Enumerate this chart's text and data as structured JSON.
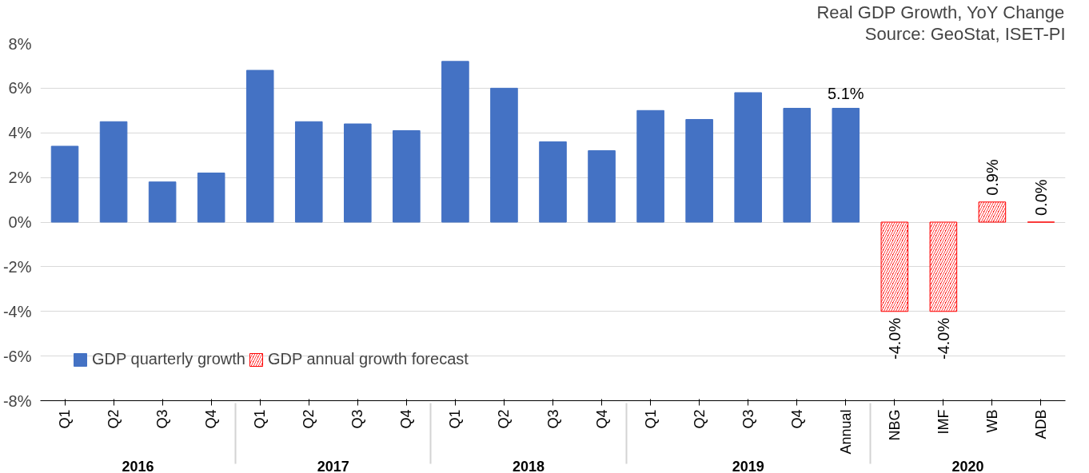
{
  "chart_data": {
    "type": "bar",
    "title": "Real GDP Growth, YoY Change",
    "annotations": [
      "Source: GeoStat, ISET-PI"
    ],
    "categories": [
      [
        "2016",
        "Q1"
      ],
      [
        null,
        "Q2"
      ],
      [
        null,
        "Q3"
      ],
      [
        null,
        "Q4"
      ],
      [
        "2017",
        "Q1"
      ],
      [
        null,
        "Q2"
      ],
      [
        null,
        "Q3"
      ],
      [
        null,
        "Q4"
      ],
      [
        "2018",
        "Q1"
      ],
      [
        null,
        "Q2"
      ],
      [
        null,
        "Q3"
      ],
      [
        null,
        "Q4"
      ],
      [
        "2019",
        "Q1"
      ],
      [
        null,
        "Q2"
      ],
      [
        null,
        "Q3"
      ],
      [
        null,
        "Q4"
      ],
      [
        null,
        "Annual"
      ],
      [
        "2020",
        "NBG"
      ],
      [
        null,
        "IMF"
      ],
      [
        null,
        "WB"
      ],
      [
        null,
        "ADB"
      ]
    ],
    "series": [
      {
        "name": "GDP quarterly growth",
        "color": "#4472c4",
        "values": [
          3.4,
          4.5,
          1.8,
          2.2,
          6.8,
          4.5,
          4.4,
          4.1,
          7.2,
          6.0,
          3.6,
          3.2,
          5.0,
          4.6,
          5.8,
          5.1,
          5.1,
          null,
          null,
          null,
          null
        ],
        "value_labels": [
          null,
          null,
          null,
          null,
          null,
          null,
          null,
          null,
          null,
          null,
          null,
          null,
          null,
          null,
          null,
          null,
          "5.1%",
          null,
          null,
          null,
          null
        ]
      },
      {
        "name": "GDP annual growth forecast",
        "color": "#ff0000",
        "values": [
          null,
          null,
          null,
          null,
          null,
          null,
          null,
          null,
          null,
          null,
          null,
          null,
          null,
          null,
          null,
          null,
          null,
          -4.0,
          -4.0,
          0.9,
          0.0
        ],
        "value_labels": [
          null,
          null,
          null,
          null,
          null,
          null,
          null,
          null,
          null,
          null,
          null,
          null,
          null,
          null,
          null,
          null,
          null,
          "-4.0%",
          "-4.0%",
          "0.9%",
          "0.0%"
        ]
      }
    ],
    "ylim": [
      -8,
      8
    ],
    "yticks": [
      {
        "value": -8,
        "label": "-8%"
      },
      {
        "value": -6,
        "label": "-6%"
      },
      {
        "value": -4,
        "label": "-4%"
      },
      {
        "value": -2,
        "label": "-2%"
      },
      {
        "value": 0,
        "label": "0%"
      },
      {
        "value": 2,
        "label": "2%"
      },
      {
        "value": 4,
        "label": "4%"
      },
      {
        "value": 6,
        "label": "6%"
      },
      {
        "value": 8,
        "label": "8%"
      }
    ],
    "grid": "y",
    "legend": "bottom left"
  }
}
